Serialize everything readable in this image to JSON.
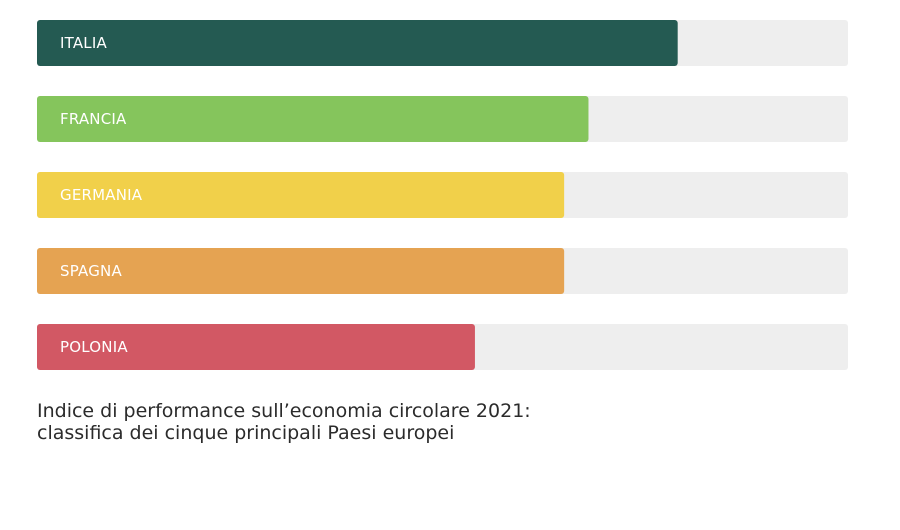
{
  "chart_data": {
    "type": "bar",
    "orientation": "horizontal",
    "categories": [
      "ITALIA",
      "FRANCIA",
      "GERMANIA",
      "SPAGNA",
      "POLONIA"
    ],
    "values": [
      79,
      68,
      65,
      65,
      54
    ],
    "xlim": [
      0,
      100
    ],
    "colors": [
      "#245a52",
      "#85c55c",
      "#f1d04a",
      "#e5a352",
      "#d25864"
    ],
    "track_color": "#eeeeee",
    "title_lines": [
      "Indice di performance sull’economia circolare 2021:",
      "classifica dei cinque principali Paesi europei"
    ],
    "grid": false,
    "legend": "none"
  }
}
